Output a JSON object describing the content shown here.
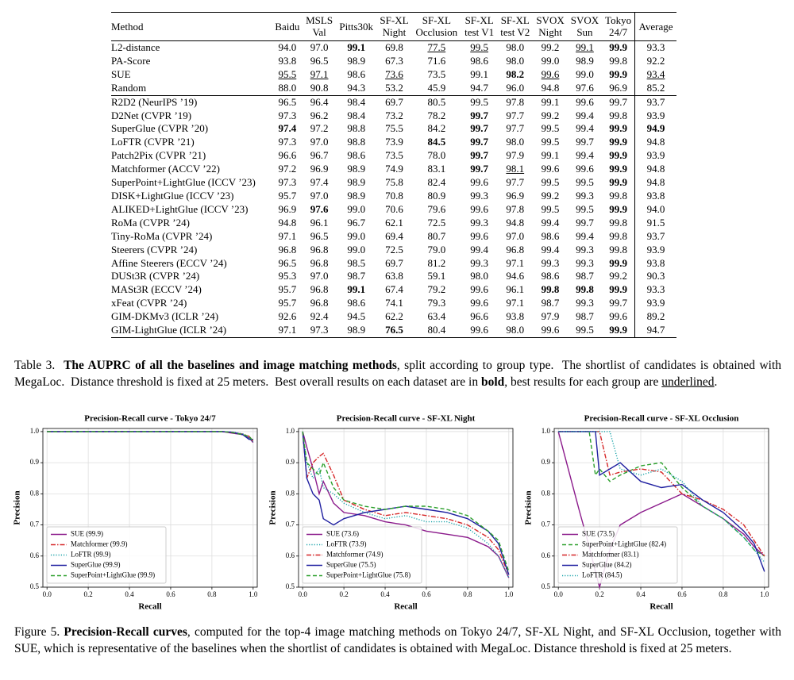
{
  "table": {
    "header": [
      "Method",
      "Baidu",
      "MSLS\nVal",
      "Pitts30k",
      "SF-XL\nNight",
      "SF-XL\nOcclusion",
      "SF-XL\ntest V1",
      "SF-XL\ntest V2",
      "SVOX\nNight",
      "SVOX\nSun",
      "Tokyo\n24/7",
      "Average"
    ],
    "groups": [
      [
        [
          "L2-distance",
          "94.0",
          "97.0",
          "99.1",
          "69.8",
          "77.5",
          "99.5",
          "98.0",
          "99.2",
          "99.1",
          "99.9",
          "93.3"
        ],
        [
          "PA-Score",
          "93.8",
          "96.5",
          "98.9",
          "67.3",
          "71.6",
          "98.6",
          "98.0",
          "99.0",
          "98.9",
          "99.8",
          "92.2"
        ],
        [
          "SUE",
          "95.5",
          "97.1",
          "98.6",
          "73.6",
          "73.5",
          "99.1",
          "98.2",
          "99.6",
          "99.0",
          "99.9",
          "93.4"
        ],
        [
          "Random",
          "88.0",
          "90.8",
          "94.3",
          "53.2",
          "45.9",
          "94.7",
          "96.0",
          "94.8",
          "97.6",
          "96.9",
          "85.2"
        ]
      ],
      [
        [
          "R2D2 (NeurIPS ’19)",
          "96.5",
          "96.4",
          "98.4",
          "69.7",
          "80.5",
          "99.5",
          "97.8",
          "99.1",
          "99.6",
          "99.7",
          "93.7"
        ],
        [
          "D2Net (CVPR ’19)",
          "97.3",
          "96.2",
          "98.4",
          "73.2",
          "78.2",
          "99.7",
          "97.7",
          "99.2",
          "99.4",
          "99.8",
          "93.9"
        ],
        [
          "SuperGlue (CVPR ’20)",
          "97.4",
          "97.2",
          "98.8",
          "75.5",
          "84.2",
          "99.7",
          "97.7",
          "99.5",
          "99.4",
          "99.9",
          "94.9"
        ],
        [
          "LoFTR (CVPR ’21)",
          "97.3",
          "97.0",
          "98.8",
          "73.9",
          "84.5",
          "99.7",
          "98.0",
          "99.5",
          "99.7",
          "99.9",
          "94.8"
        ],
        [
          "Patch2Pix (CVPR ’21)",
          "96.6",
          "96.7",
          "98.6",
          "73.5",
          "78.0",
          "99.7",
          "97.9",
          "99.1",
          "99.4",
          "99.9",
          "93.9"
        ],
        [
          "Matchformer (ACCV ’22)",
          "97.2",
          "96.9",
          "98.9",
          "74.9",
          "83.1",
          "99.7",
          "98.1",
          "99.6",
          "99.6",
          "99.9",
          "94.8"
        ],
        [
          "SuperPoint+LightGlue (ICCV ’23)",
          "97.3",
          "97.4",
          "98.9",
          "75.8",
          "82.4",
          "99.6",
          "97.7",
          "99.5",
          "99.5",
          "99.9",
          "94.8"
        ],
        [
          "DISK+LightGlue (ICCV ’23)",
          "95.7",
          "97.0",
          "98.9",
          "70.8",
          "80.9",
          "99.3",
          "96.9",
          "99.2",
          "99.3",
          "99.8",
          "93.8"
        ],
        [
          "ALIKED+LightGlue (ICCV ’23)",
          "96.9",
          "97.6",
          "99.0",
          "70.6",
          "79.6",
          "99.6",
          "97.8",
          "99.5",
          "99.5",
          "99.9",
          "94.0"
        ],
        [
          "RoMa (CVPR ’24)",
          "94.8",
          "96.1",
          "96.7",
          "62.1",
          "72.5",
          "99.3",
          "94.8",
          "99.4",
          "99.7",
          "99.8",
          "91.5"
        ],
        [
          "Tiny-RoMa (CVPR ’24)",
          "97.1",
          "96.5",
          "99.0",
          "69.4",
          "80.7",
          "99.6",
          "97.0",
          "98.6",
          "99.4",
          "99.8",
          "93.7"
        ],
        [
          "Steerers (CVPR ’24)",
          "96.8",
          "96.8",
          "99.0",
          "72.5",
          "79.0",
          "99.4",
          "96.8",
          "99.4",
          "99.3",
          "99.8",
          "93.9"
        ],
        [
          "Affine Steerers (ECCV ’24)",
          "96.5",
          "96.8",
          "98.5",
          "69.7",
          "81.2",
          "99.3",
          "97.1",
          "99.3",
          "99.3",
          "99.9",
          "93.8"
        ],
        [
          "DUSt3R (CVPR ’24)",
          "95.3",
          "97.0",
          "98.7",
          "63.8",
          "59.1",
          "98.0",
          "94.6",
          "98.6",
          "98.7",
          "99.2",
          "90.3"
        ],
        [
          "MASt3R (ECCV ’24)",
          "95.7",
          "96.8",
          "99.1",
          "67.4",
          "79.2",
          "99.6",
          "96.1",
          "99.8",
          "99.8",
          "99.9",
          "93.3"
        ],
        [
          "xFeat (CVPR ’24)",
          "95.7",
          "96.8",
          "98.6",
          "74.1",
          "79.3",
          "99.6",
          "97.1",
          "98.7",
          "99.3",
          "99.7",
          "93.9"
        ],
        [
          "GIM-DKMv3 (ICLR ’24)",
          "92.6",
          "92.4",
          "94.5",
          "62.2",
          "63.4",
          "96.6",
          "93.8",
          "97.9",
          "98.7",
          "99.6",
          "89.2"
        ],
        [
          "GIM-LightGlue (ICLR ’24)",
          "97.1",
          "97.3",
          "98.9",
          "76.5",
          "80.4",
          "99.6",
          "98.0",
          "99.6",
          "99.5",
          "99.9",
          "94.7"
        ]
      ]
    ],
    "bold": [
      [
        0,
        0,
        3
      ],
      [
        0,
        0,
        10
      ],
      [
        0,
        2,
        7
      ],
      [
        0,
        2,
        10
      ],
      [
        1,
        1,
        6
      ],
      [
        1,
        2,
        1
      ],
      [
        1,
        2,
        6
      ],
      [
        1,
        2,
        10
      ],
      [
        1,
        2,
        11
      ],
      [
        1,
        3,
        5
      ],
      [
        1,
        3,
        6
      ],
      [
        1,
        3,
        10
      ],
      [
        1,
        4,
        6
      ],
      [
        1,
        4,
        10
      ],
      [
        1,
        5,
        6
      ],
      [
        1,
        5,
        10
      ],
      [
        1,
        6,
        10
      ],
      [
        1,
        8,
        2
      ],
      [
        1,
        8,
        10
      ],
      [
        1,
        12,
        10
      ],
      [
        1,
        14,
        3
      ],
      [
        1,
        14,
        8
      ],
      [
        1,
        14,
        9
      ],
      [
        1,
        14,
        10
      ],
      [
        1,
        17,
        4
      ],
      [
        1,
        17,
        10
      ]
    ],
    "underline": [
      [
        0,
        0,
        5
      ],
      [
        0,
        0,
        6
      ],
      [
        0,
        0,
        9
      ],
      [
        0,
        2,
        1
      ],
      [
        0,
        2,
        2
      ],
      [
        0,
        2,
        4
      ],
      [
        0,
        2,
        8
      ],
      [
        0,
        2,
        11
      ],
      [
        1,
        5,
        7
      ]
    ]
  },
  "table_caption": [
    {
      "text": "Table 3.  ",
      "style": "normal"
    },
    {
      "text": "The AUPRC of all the baselines and image matching methods",
      "style": "bold"
    },
    {
      "text": ", split according to group type.  The shortlist of candidates is obtained with MegaLoc.  Distance threshold is fixed at 25 meters.  Best overall results on each dataset are in ",
      "style": "normal"
    },
    {
      "text": "bold",
      "style": "bold"
    },
    {
      "text": ", best results for each group are ",
      "style": "normal"
    },
    {
      "text": "underlined",
      "style": "underline"
    },
    {
      "text": ".",
      "style": "normal"
    }
  ],
  "figure_caption": [
    {
      "text": "Figure 5. ",
      "style": "normal"
    },
    {
      "text": "Precision-Recall curves",
      "style": "bold"
    },
    {
      "text": ", computed for the top-4 image matching methods on Tokyo 24/7, SF-XL Night, and SF-XL Occlusion, together with SUE, which is representative of the baselines when the shortlist of candidates is obtained with MegaLoc. Distance threshold is fixed at 25 meters.",
      "style": "normal"
    }
  ],
  "chart_data": [
    {
      "type": "line",
      "title": "Precision-Recall curve - Tokyo 24/7",
      "xlabel": "Recall",
      "ylabel": "Precision",
      "xlim": [
        -0.02,
        1.02
      ],
      "ylim": [
        0.5,
        1.01
      ],
      "xticks": [
        {
          "value": 0,
          "label": "0.0"
        },
        0.2,
        0.4,
        0.6,
        0.8,
        {
          "value": 1,
          "label": "1.0"
        }
      ],
      "yticks": [
        0.5,
        0.6,
        0.7,
        0.8,
        0.9,
        {
          "value": 1,
          "label": "1.0"
        }
      ],
      "grid": true,
      "legend": "lower left",
      "x": [
        0,
        0.5,
        0.85,
        0.9,
        0.95,
        0.98,
        1.0
      ],
      "series": [
        {
          "name": "SUE (99.9)",
          "color": "#8b1a8b",
          "style": "solid",
          "values": [
            1,
            1,
            1,
            0.995,
            0.99,
            0.98,
            0.965
          ]
        },
        {
          "name": "Matchformer (99.9)",
          "color": "#d62728",
          "style": "dashdot",
          "values": [
            1,
            1,
            1,
            0.997,
            0.992,
            0.985,
            0.97
          ]
        },
        {
          "name": "LoFTR (99.9)",
          "color": "#17a2a8",
          "style": "dotted",
          "values": [
            1,
            1,
            1,
            0.998,
            0.993,
            0.98,
            0.968
          ]
        },
        {
          "name": "SuperGlue (99.9)",
          "color": "#1f1fa0",
          "style": "solid",
          "values": [
            1,
            1,
            1,
            0.998,
            0.99,
            0.975,
            0.975
          ]
        },
        {
          "name": "SuperPoint+LightGlue (99.9)",
          "color": "#2ca02c",
          "style": "dashed",
          "values": [
            1,
            1,
            1,
            0.997,
            0.99,
            0.985,
            0.97
          ]
        }
      ]
    },
    {
      "type": "line",
      "title": "Precision-Recall curve - SF-XL Night",
      "xlabel": "Recall",
      "ylabel": "Precision",
      "xlim": [
        -0.02,
        1.02
      ],
      "ylim": [
        0.5,
        1.01
      ],
      "xticks": [
        {
          "value": 0,
          "label": "0.0"
        },
        0.2,
        0.4,
        0.6,
        0.8,
        {
          "value": 1,
          "label": "1.0"
        }
      ],
      "yticks": [
        0.5,
        0.6,
        0.7,
        0.8,
        0.9,
        {
          "value": 1,
          "label": "1.0"
        }
      ],
      "grid": true,
      "legend": "lower left",
      "x": [
        0,
        0.02,
        0.05,
        0.08,
        0.1,
        0.15,
        0.2,
        0.3,
        0.4,
        0.5,
        0.6,
        0.7,
        0.8,
        0.9,
        0.95,
        1.0
      ],
      "series": [
        {
          "name": "SUE (73.6)",
          "color": "#8b1a8b",
          "style": "solid",
          "values": [
            1,
            0.95,
            0.88,
            0.8,
            0.84,
            0.77,
            0.74,
            0.73,
            0.71,
            0.7,
            0.68,
            0.67,
            0.66,
            0.63,
            0.6,
            0.53
          ]
        },
        {
          "name": "LoFTR (73.9)",
          "color": "#17a2a8",
          "style": "dotted",
          "values": [
            1,
            0.9,
            0.85,
            0.88,
            0.82,
            0.8,
            0.77,
            0.74,
            0.72,
            0.73,
            0.71,
            0.71,
            0.69,
            0.64,
            0.6,
            0.53
          ]
        },
        {
          "name": "Matchformer (74.9)",
          "color": "#d62728",
          "style": "dashdot",
          "values": [
            1,
            0.85,
            0.9,
            0.92,
            0.93,
            0.86,
            0.78,
            0.75,
            0.73,
            0.74,
            0.73,
            0.72,
            0.7,
            0.66,
            0.62,
            0.54
          ]
        },
        {
          "name": "SuperGlue (75.5)",
          "color": "#1f1fa0",
          "style": "solid",
          "values": [
            1,
            0.85,
            0.8,
            0.78,
            0.72,
            0.7,
            0.72,
            0.74,
            0.75,
            0.76,
            0.75,
            0.74,
            0.72,
            0.68,
            0.64,
            0.54
          ]
        },
        {
          "name": "SuperPoint+LightGlue (75.8)",
          "color": "#2ca02c",
          "style": "dashed",
          "values": [
            1,
            0.9,
            0.88,
            0.86,
            0.9,
            0.82,
            0.78,
            0.76,
            0.75,
            0.76,
            0.76,
            0.75,
            0.73,
            0.68,
            0.65,
            0.55
          ]
        }
      ]
    },
    {
      "type": "line",
      "title": "Precision-Recall curve - SF-XL Occlusion",
      "xlabel": "Recall",
      "ylabel": "Precision",
      "xlim": [
        -0.02,
        1.02
      ],
      "ylim": [
        0.5,
        1.01
      ],
      "xticks": [
        {
          "value": 0,
          "label": "0.0"
        },
        0.2,
        0.4,
        0.6,
        0.8,
        {
          "value": 1,
          "label": "1.0"
        }
      ],
      "yticks": [
        0.5,
        0.6,
        0.7,
        0.8,
        0.9,
        {
          "value": 1,
          "label": "1.0"
        }
      ],
      "grid": true,
      "legend": "lower left",
      "x": [
        0,
        0.1,
        0.15,
        0.18,
        0.2,
        0.25,
        0.3,
        0.4,
        0.5,
        0.6,
        0.7,
        0.8,
        0.9,
        0.95,
        1.0
      ],
      "series": [
        {
          "name": "SUE (73.5)",
          "color": "#8b1a8b",
          "style": "solid",
          "values": [
            1,
            0.75,
            0.63,
            0.55,
            0.5,
            0.62,
            0.7,
            0.74,
            0.77,
            0.8,
            0.76,
            0.72,
            0.67,
            0.63,
            0.6
          ]
        },
        {
          "name": "SuperPoint+LightGlue (82.4)",
          "color": "#2ca02c",
          "style": "dashed",
          "values": [
            1,
            1,
            1,
            0.86,
            0.88,
            0.84,
            0.86,
            0.89,
            0.9,
            0.82,
            0.76,
            0.72,
            0.66,
            0.62,
            0.6
          ]
        },
        {
          "name": "Matchformer (83.1)",
          "color": "#d62728",
          "style": "dashdot",
          "values": [
            1,
            1,
            1,
            1,
            1,
            0.86,
            0.87,
            0.88,
            0.87,
            0.8,
            0.78,
            0.75,
            0.7,
            0.65,
            0.6
          ]
        },
        {
          "name": "SuperGlue (84.2)",
          "color": "#1f1fa0",
          "style": "solid",
          "values": [
            1,
            1,
            1,
            1,
            0.86,
            0.88,
            0.9,
            0.84,
            0.82,
            0.83,
            0.78,
            0.74,
            0.68,
            0.64,
            0.55
          ]
        },
        {
          "name": "LoFTR (84.5)",
          "color": "#17a2a8",
          "style": "dotted",
          "values": [
            1,
            1,
            1,
            1,
            1,
            1,
            0.88,
            0.86,
            0.88,
            0.84,
            0.76,
            0.72,
            0.66,
            0.62,
            0.58
          ]
        }
      ]
    }
  ]
}
